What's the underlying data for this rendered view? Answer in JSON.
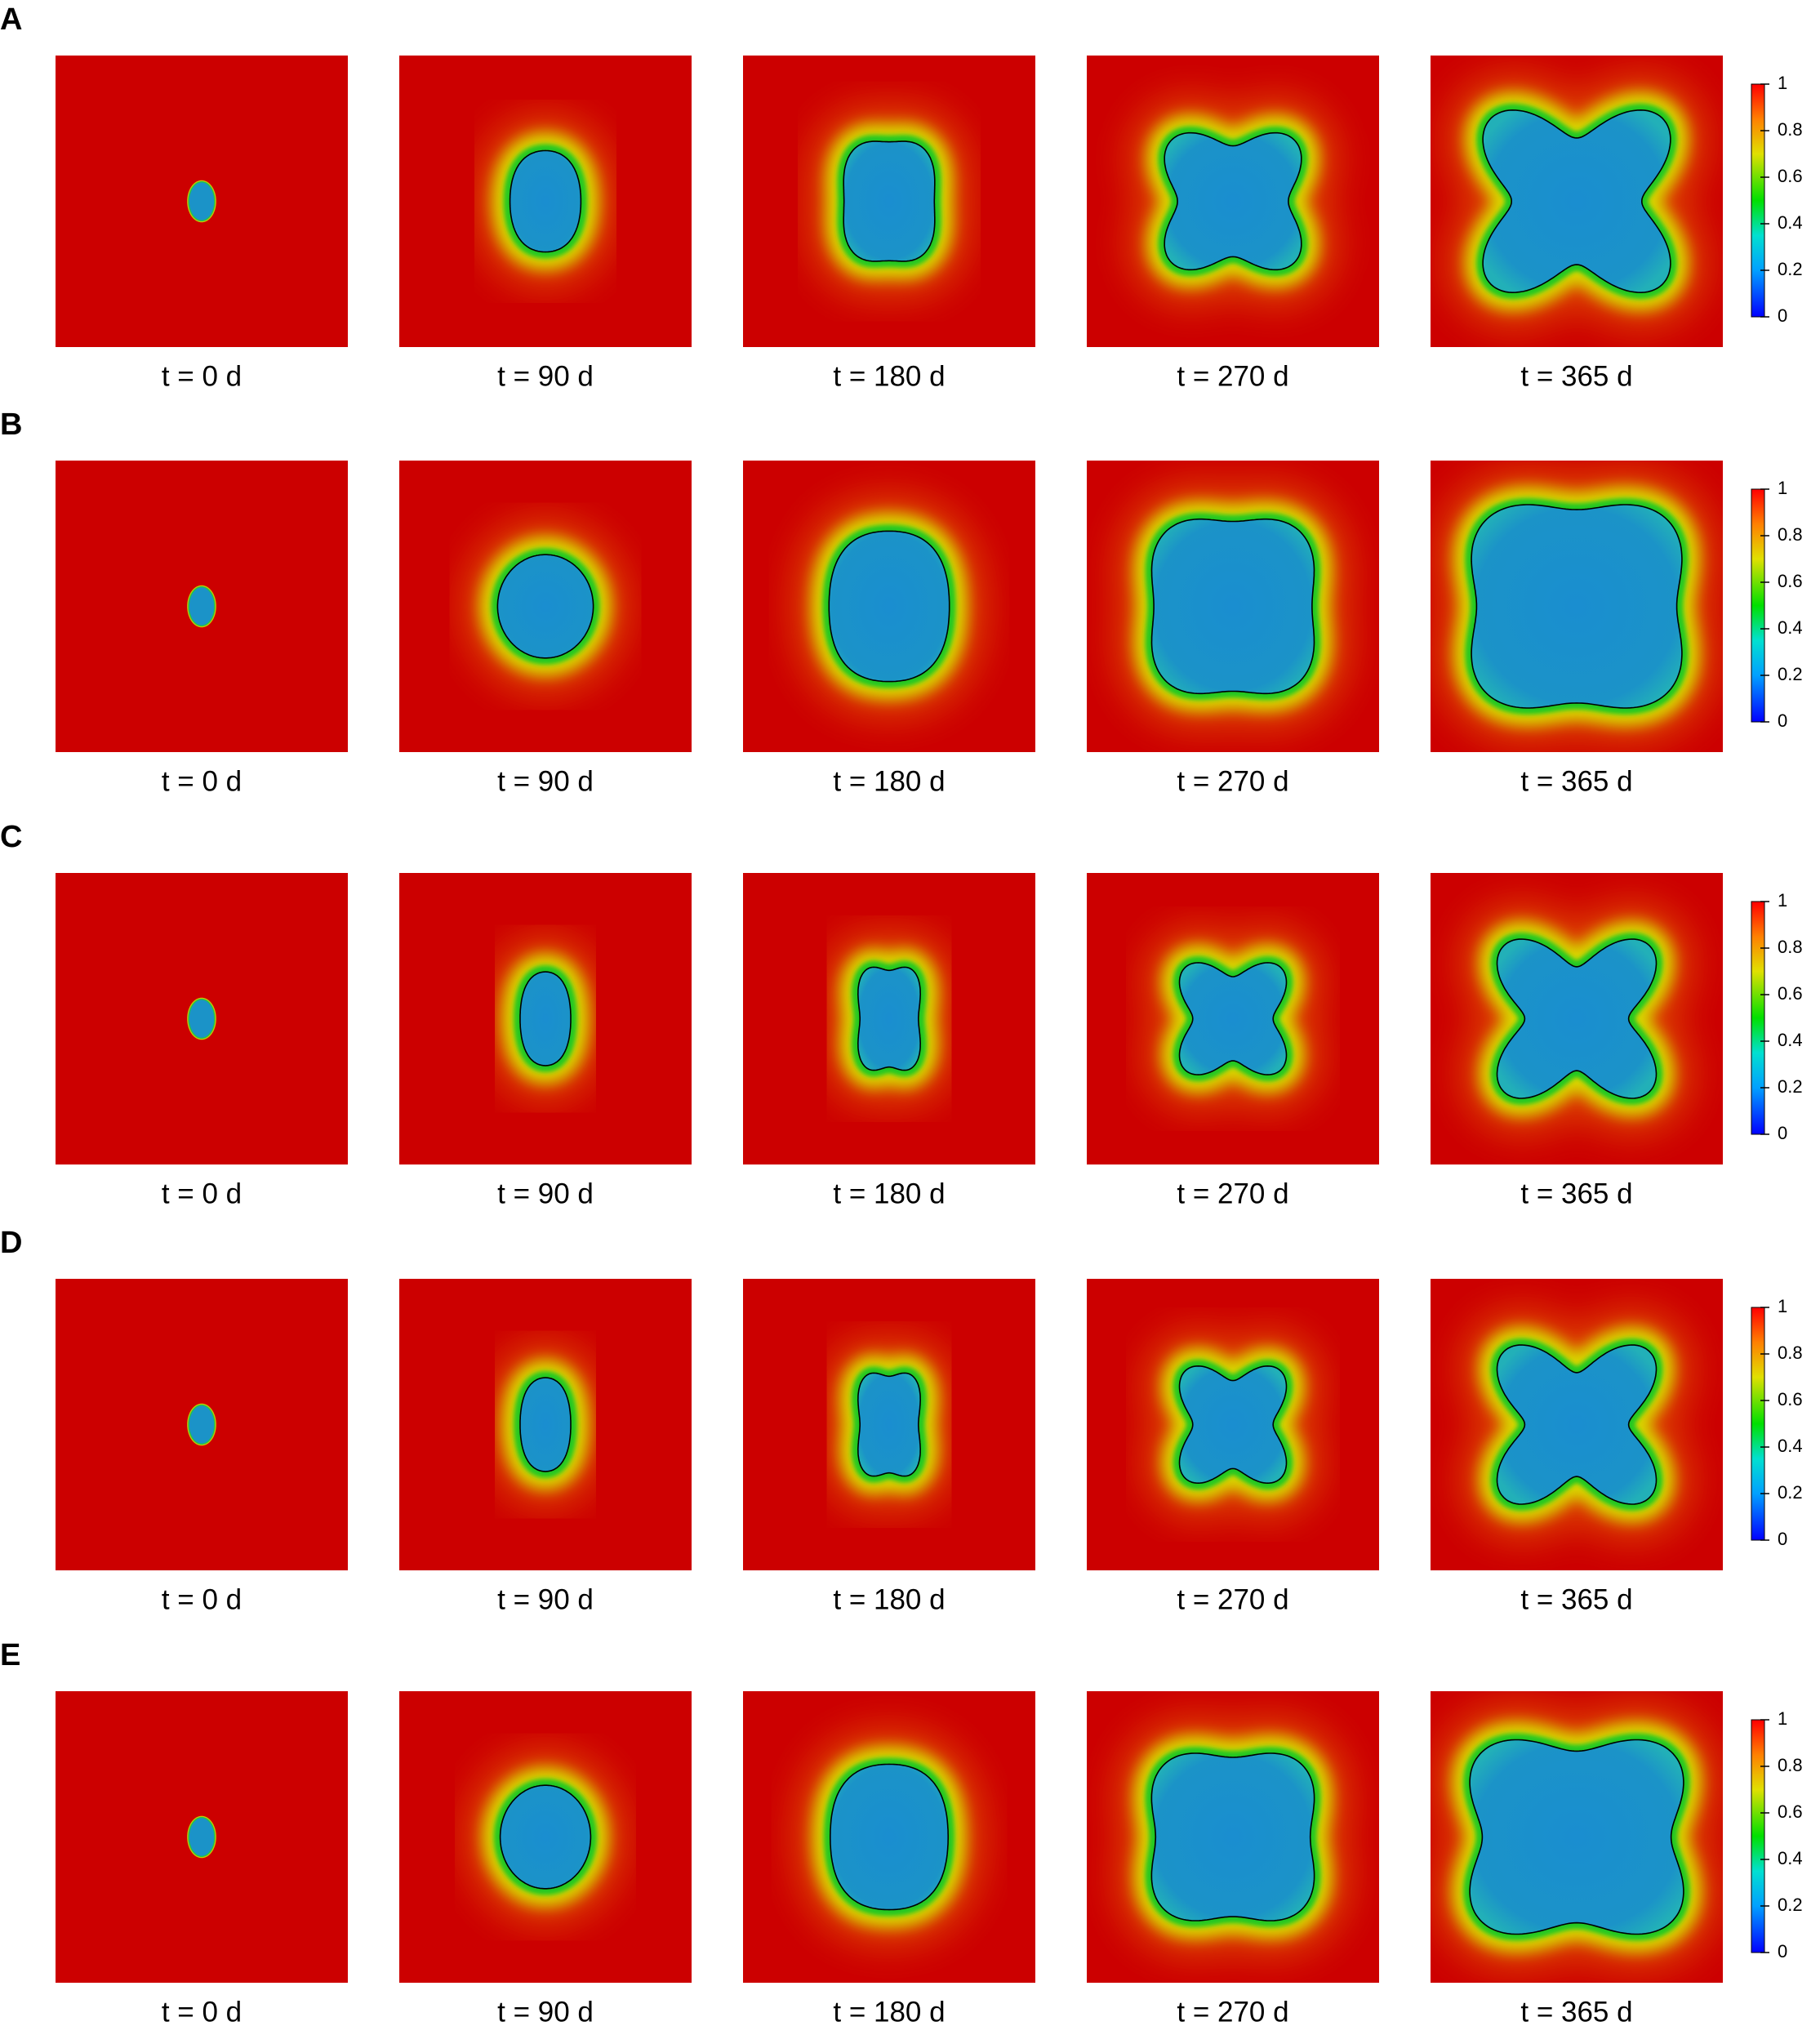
{
  "rows": [
    {
      "label": "A",
      "times": [
        "t = 0 d",
        "t = 90 d",
        "t = 180 d",
        "t = 270 d",
        "t = 365 d"
      ],
      "colorbar_lim": [
        0,
        1
      ],
      "colorbar_ticks": [
        0,
        0.2,
        0.4,
        0.6,
        0.8,
        1
      ]
    },
    {
      "label": "B",
      "times": [
        "t = 0 d",
        "t = 90 d",
        "t = 180 d",
        "t = 270 d",
        "t = 365 d"
      ],
      "colorbar_lim": [
        0,
        1
      ],
      "colorbar_ticks": [
        0,
        0.2,
        0.4,
        0.6,
        0.8,
        1
      ]
    },
    {
      "label": "C",
      "times": [
        "t = 0 d",
        "t = 90 d",
        "t = 180 d",
        "t = 270 d",
        "t = 365 d"
      ],
      "colorbar_lim": [
        0,
        1
      ],
      "colorbar_ticks": [
        0,
        0.2,
        0.4,
        0.6,
        0.8,
        1
      ]
    },
    {
      "label": "D",
      "times": [
        "t = 0 d",
        "t = 90 d",
        "t = 180 d",
        "t = 270 d",
        "t = 365 d"
      ],
      "colorbar_lim": [
        0,
        1
      ],
      "colorbar_ticks": [
        0,
        0.2,
        0.4,
        0.6,
        0.8,
        1
      ]
    },
    {
      "label": "E",
      "times": [
        "t = 0 d",
        "t = 90 d",
        "t = 180 d",
        "t = 270 d",
        "t = 365 d"
      ],
      "colorbar_lim": [
        0,
        1
      ],
      "colorbar_ticks": [
        0,
        0.2,
        0.4,
        0.6,
        0.8,
        1
      ]
    }
  ]
}
